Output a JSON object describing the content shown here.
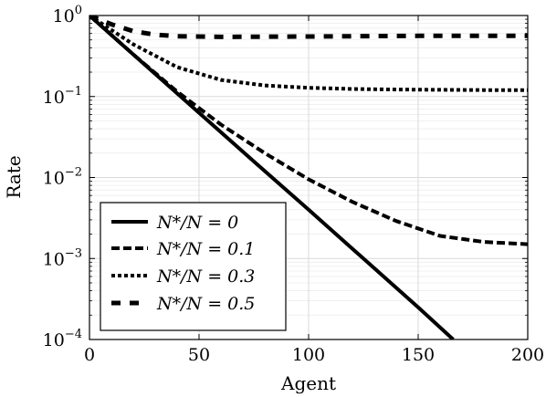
{
  "chart_data": {
    "type": "line",
    "title": "",
    "xlabel": "Agent",
    "ylabel": "Rate",
    "xlim": [
      0,
      200
    ],
    "ylim": [
      0.0001,
      1
    ],
    "yscale": "log",
    "grid": true,
    "legend_position": "bottom-left",
    "x_ticks": [
      0,
      50,
      100,
      150,
      200
    ],
    "y_ticks": [
      {
        "value": 1,
        "base": "10",
        "exp": "0"
      },
      {
        "value": 0.1,
        "base": "10",
        "exp": "−1"
      },
      {
        "value": 0.01,
        "base": "10",
        "exp": "−2"
      },
      {
        "value": 0.001,
        "base": "10",
        "exp": "−3"
      },
      {
        "value": 0.0001,
        "base": "10",
        "exp": "−4"
      }
    ],
    "series": [
      {
        "name": "N*/N = 0",
        "style": "solid",
        "x": [
          0,
          25,
          50,
          75,
          100,
          125,
          150,
          166
        ],
        "y": [
          1,
          0.25,
          0.063,
          0.0158,
          0.004,
          0.001,
          0.00025,
          0.0001
        ]
      },
      {
        "name": "N*/N = 0.1",
        "style": "dashed",
        "x": [
          0,
          20,
          40,
          60,
          80,
          100,
          120,
          140,
          160,
          180,
          200
        ],
        "y": [
          1,
          0.33,
          0.115,
          0.045,
          0.02,
          0.0095,
          0.005,
          0.0029,
          0.0019,
          0.0016,
          0.0015
        ]
      },
      {
        "name": "N*/N = 0.3",
        "style": "dotted",
        "x": [
          0,
          20,
          40,
          60,
          80,
          100,
          120,
          140,
          160,
          180,
          200
        ],
        "y": [
          1,
          0.44,
          0.23,
          0.16,
          0.137,
          0.128,
          0.124,
          0.122,
          0.121,
          0.12,
          0.12
        ]
      },
      {
        "name": "N*/N = 0.5",
        "style": "loosely-dashed",
        "x": [
          0,
          10,
          20,
          30,
          40,
          60,
          100,
          150,
          200
        ],
        "y": [
          1,
          0.78,
          0.64,
          0.58,
          0.555,
          0.545,
          0.55,
          0.56,
          0.56
        ]
      }
    ]
  }
}
